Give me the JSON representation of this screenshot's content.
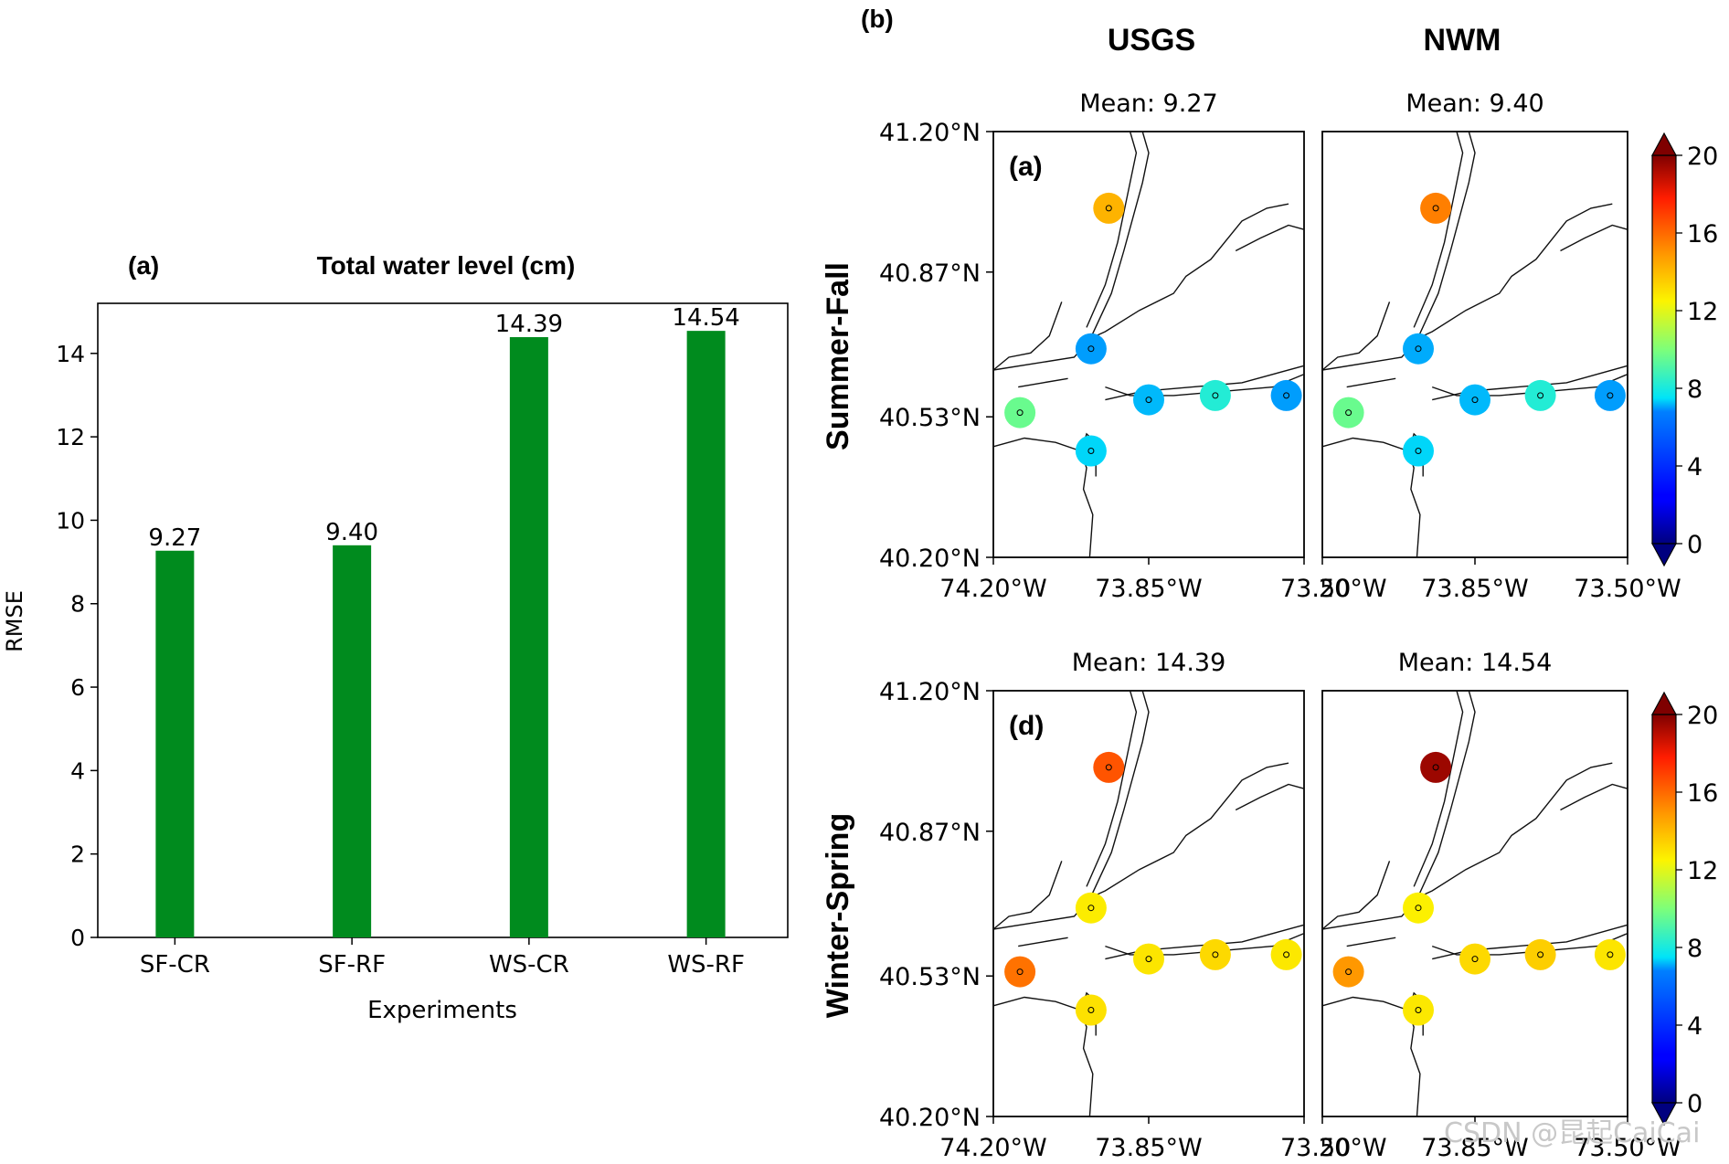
{
  "chart_data": [
    {
      "type": "bar",
      "panel_label": "(a)",
      "title": "Total water level (cm)",
      "xlabel": "Experiments",
      "ylabel": "RMSE",
      "categories": [
        "SF-CR",
        "SF-RF",
        "WS-CR",
        "WS-RF"
      ],
      "values": [
        9.27,
        9.4,
        14.39,
        14.54
      ],
      "value_labels": [
        "9.27",
        "9.40",
        "14.39",
        "14.54"
      ],
      "ylim": [
        0,
        15.2
      ],
      "yticks": [
        0,
        2,
        4,
        6,
        8,
        10,
        12,
        14
      ],
      "bar_color": "#008b1e",
      "grid": false
    },
    {
      "type": "scatter",
      "panel_label": "(b)",
      "column_titles": [
        "USGS",
        "NWM"
      ],
      "row_titles": [
        "Summer-Fall",
        "Winter-Spring"
      ],
      "lat_ticks": [
        "41.20°N",
        "40.87°N",
        "40.53°N",
        "40.20°N"
      ],
      "lat_values": [
        41.2,
        40.87,
        40.53,
        40.2
      ],
      "lon_tick_labels_left": [
        "74.20°W",
        "73.85°W",
        "73.50"
      ],
      "lon_tick_labels_right": [
        "20°W",
        "73.85°W",
        "73.50°W"
      ],
      "lon_values": [
        -74.2,
        -73.85,
        -73.5
      ],
      "colorbar_ticks": [
        "0",
        "4",
        "8",
        "12",
        "16",
        "20"
      ],
      "colormap": "jet",
      "clim": [
        0,
        20
      ],
      "station_lonlat": [
        [
          -73.94,
          41.02
        ],
        [
          -73.98,
          40.69
        ],
        [
          -74.14,
          40.54
        ],
        [
          -73.98,
          40.45
        ],
        [
          -73.85,
          40.57
        ],
        [
          -73.7,
          40.58
        ],
        [
          -73.54,
          40.58
        ]
      ],
      "panels": [
        {
          "sub_label": "(a)",
          "column": "USGS",
          "row": "Summer-Fall",
          "mean_text": "Mean: 9.27",
          "station_values": [
            14.2,
            7.0,
            9.6,
            7.4,
            7.2,
            8.2,
            7.0
          ]
        },
        {
          "sub_label": "",
          "column": "NWM",
          "row": "Summer-Fall",
          "mean_text": "Mean: 9.40",
          "station_values": [
            15.5,
            7.1,
            9.6,
            7.4,
            7.2,
            8.2,
            7.0
          ]
        },
        {
          "sub_label": "(d)",
          "column": "USGS",
          "row": "Winter-Spring",
          "mean_text": "Mean: 14.39",
          "station_values": [
            16.5,
            12.7,
            15.8,
            13.0,
            12.9,
            13.2,
            12.8
          ]
        },
        {
          "sub_label": "",
          "column": "NWM",
          "row": "Winter-Spring",
          "mean_text": "Mean: 14.54",
          "station_values": [
            19.5,
            12.6,
            14.9,
            12.8,
            13.2,
            13.5,
            12.9
          ]
        }
      ]
    }
  ],
  "watermark": "CSDN @昆起CaiCai"
}
